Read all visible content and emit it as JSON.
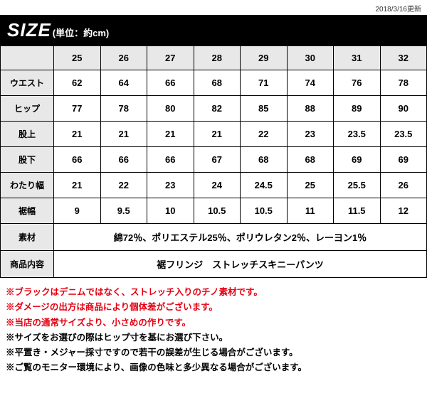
{
  "update_text": "2018/3/16更新",
  "title_main": "SIZE",
  "title_sub": "(単位：約cm)",
  "col_headers": [
    "25",
    "26",
    "27",
    "28",
    "29",
    "30",
    "31",
    "32"
  ],
  "rows": [
    {
      "label": "ウエスト",
      "cells": [
        "62",
        "64",
        "66",
        "68",
        "71",
        "74",
        "76",
        "78"
      ]
    },
    {
      "label": "ヒップ",
      "cells": [
        "77",
        "78",
        "80",
        "82",
        "85",
        "88",
        "89",
        "90"
      ]
    },
    {
      "label": "股上",
      "cells": [
        "21",
        "21",
        "21",
        "21",
        "22",
        "23",
        "23.5",
        "23.5"
      ]
    },
    {
      "label": "股下",
      "cells": [
        "66",
        "66",
        "66",
        "67",
        "68",
        "68",
        "69",
        "69"
      ]
    },
    {
      "label": "わたり幅",
      "cells": [
        "21",
        "22",
        "23",
        "24",
        "24.5",
        "25",
        "25.5",
        "26"
      ]
    },
    {
      "label": "裾幅",
      "cells": [
        "9",
        "9.5",
        "10",
        "10.5",
        "10.5",
        "11",
        "11.5",
        "12"
      ]
    }
  ],
  "span_rows": [
    {
      "label": "素材",
      "value": "綿72％、ポリエステル25％、ポリウレタン2％、レーヨン1％"
    },
    {
      "label": "商品内容",
      "value": "裾フリンジ　ストレッチスキニーパンツ"
    }
  ],
  "notes_red": [
    "※ブラックはデニムではなく、ストレッチ入りのチノ素材です。",
    "※ダメージの出方は商品により個体差がございます。",
    "※当店の通常サイズより、小さめの作りです。"
  ],
  "notes_black": [
    "※サイズをお選びの際はヒップ寸を基にお選び下さい。",
    "※平置き・メジャー採寸ですので若干の誤差が生じる場合がございます。",
    "※ご覧のモニター環境により、画像の色味と多少異なる場合がございます。"
  ],
  "colors": {
    "header_bg": "#e8e8e8",
    "border": "#000000",
    "title_bg": "#000000",
    "title_fg": "#ffffff",
    "note_red": "#e60012"
  }
}
